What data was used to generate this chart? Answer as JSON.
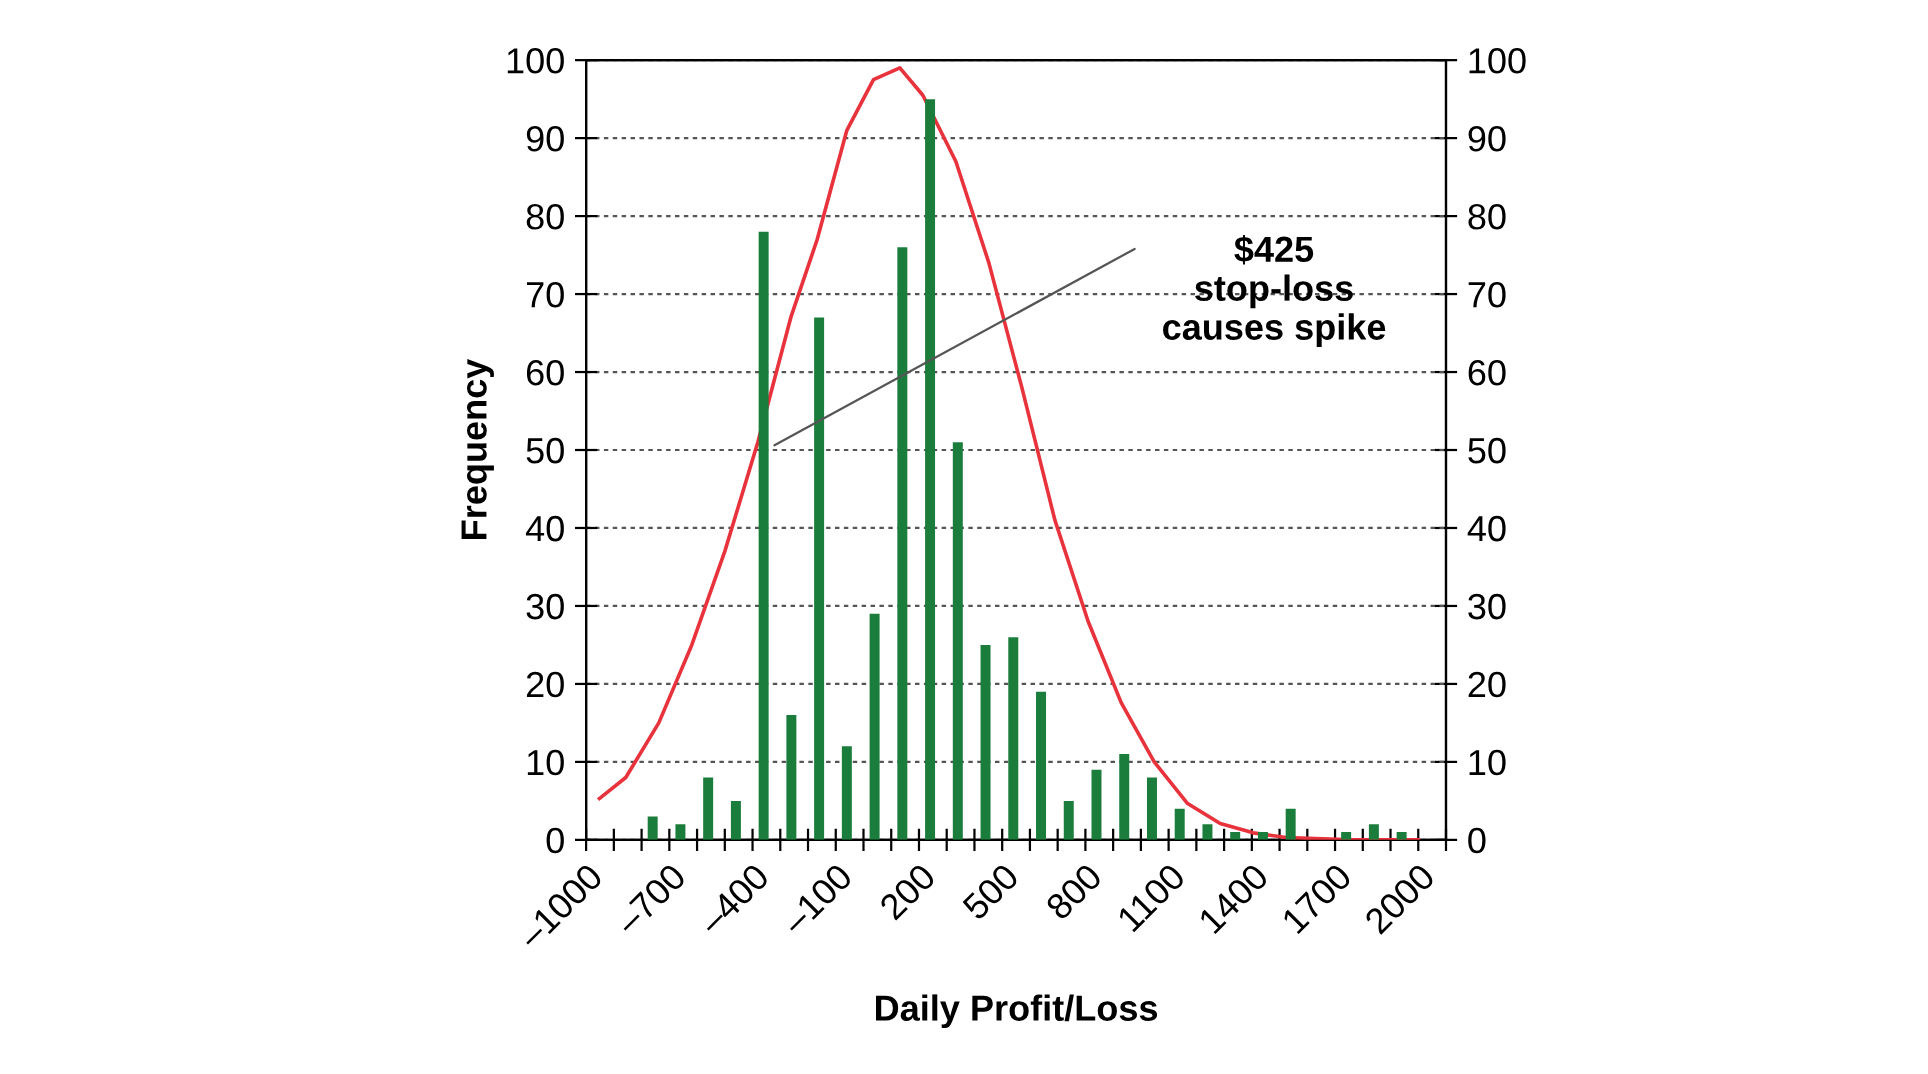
{
  "chart_data": {
    "type": "histogram",
    "xlabel": "Daily Profit/Loss",
    "ylabel": "Frequency",
    "bins": [
      -1000,
      -900,
      -800,
      -700,
      -600,
      -500,
      -400,
      -300,
      -200,
      -100,
      0,
      100,
      200,
      300,
      400,
      500,
      600,
      700,
      800,
      900,
      1000,
      1100,
      1200,
      1300,
      1400,
      1500,
      1600,
      1700,
      1800,
      1900,
      2000,
      2100
    ],
    "series": [
      {
        "color": "#1b7d3c",
        "values": [
          0,
          0,
          3,
          2,
          8,
          5,
          78,
          16,
          67,
          12,
          29,
          76,
          95,
          51,
          25,
          26,
          19,
          5,
          9,
          11,
          8,
          4,
          2,
          1,
          1,
          4,
          0,
          1,
          2,
          1,
          0
        ]
      },
      {
        "type": "line",
        "color": "#e8323c",
        "x": [
          -952,
          -857,
          -738,
          -619,
          -500,
          -381,
          -262,
          -167,
          -60,
          36,
          131,
          214,
          333,
          452,
          571,
          690,
          810,
          929,
          1048,
          1167,
          1286,
          1405,
          1524,
          1762,
          2000
        ],
        "values": [
          5.3,
          8,
          15,
          25,
          37,
          51,
          67,
          77,
          91,
          97.5,
          99,
          95.5,
          87,
          74,
          58,
          41,
          28,
          17.6,
          10,
          4.7,
          2.1,
          0.9,
          0.3,
          0,
          0
        ]
      }
    ],
    "xlim": [
      -1000,
      2100
    ],
    "xticks": [
      {
        "value": -1000,
        "label": "–1000"
      },
      {
        "value": -900,
        "label": null
      },
      {
        "value": -800,
        "label": null
      },
      {
        "value": -700,
        "label": "–700"
      },
      {
        "value": -600,
        "label": null
      },
      {
        "value": -500,
        "label": null
      },
      {
        "value": -400,
        "label": "–400"
      },
      {
        "value": -300,
        "label": null
      },
      {
        "value": -200,
        "label": null
      },
      {
        "value": -100,
        "label": "–100"
      },
      {
        "value": 0,
        "label": null
      },
      {
        "value": 100,
        "label": null
      },
      200,
      {
        "value": 300,
        "label": null
      },
      {
        "value": 400,
        "label": null
      },
      500,
      {
        "value": 600,
        "label": null
      },
      {
        "value": 700,
        "label": null
      },
      800,
      {
        "value": 900,
        "label": null
      },
      {
        "value": 1000,
        "label": null
      },
      1100,
      {
        "value": 1200,
        "label": null
      },
      {
        "value": 1300,
        "label": null
      },
      1400,
      {
        "value": 1500,
        "label": null
      },
      {
        "value": 1600,
        "label": null
      },
      1700,
      {
        "value": 1800,
        "label": null
      },
      {
        "value": 1900,
        "label": null
      },
      2000,
      {
        "value": 2100,
        "label": null
      }
    ],
    "ylim": [
      0,
      100
    ],
    "yticks": [
      0,
      10,
      20,
      30,
      40,
      50,
      60,
      70,
      80,
      90,
      100
    ],
    "y2lim": [
      0,
      100
    ],
    "y2ticks": [
      0,
      10,
      20,
      30,
      40,
      50,
      60,
      70,
      80,
      90,
      100
    ],
    "grid": "y",
    "legend": false,
    "marker": "none",
    "line_style": "solid",
    "annotations": [
      {
        "text": "$425\nstop-loss\ncauses spike",
        "x": -321,
        "y": 50.6
      }
    ]
  }
}
